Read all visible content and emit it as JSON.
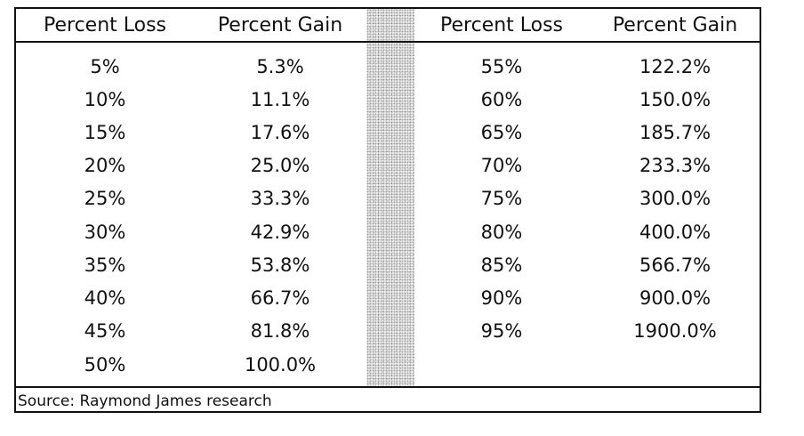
{
  "table": {
    "headers": {
      "left_loss": "Percent Loss",
      "left_gain": "Percent Gain",
      "right_loss": "Percent Loss",
      "right_gain": "Percent Gain"
    },
    "left_rows": [
      {
        "loss": "5%",
        "gain": "5.3%"
      },
      {
        "loss": "10%",
        "gain": "11.1%"
      },
      {
        "loss": "15%",
        "gain": "17.6%"
      },
      {
        "loss": "20%",
        "gain": "25.0%"
      },
      {
        "loss": "25%",
        "gain": "33.3%"
      },
      {
        "loss": "30%",
        "gain": "42.9%"
      },
      {
        "loss": "35%",
        "gain": "53.8%"
      },
      {
        "loss": "40%",
        "gain": "66.7%"
      },
      {
        "loss": "45%",
        "gain": "81.8%"
      },
      {
        "loss": "50%",
        "gain": "100.0%"
      }
    ],
    "right_rows": [
      {
        "loss": "55%",
        "gain": "122.2%"
      },
      {
        "loss": "60%",
        "gain": "150.0%"
      },
      {
        "loss": "65%",
        "gain": "185.7%"
      },
      {
        "loss": "70%",
        "gain": "233.3%"
      },
      {
        "loss": "75%",
        "gain": "300.0%"
      },
      {
        "loss": "80%",
        "gain": "400.0%"
      },
      {
        "loss": "85%",
        "gain": "566.7%"
      },
      {
        "loss": "90%",
        "gain": "900.0%"
      },
      {
        "loss": "95%",
        "gain": "1900.0%"
      }
    ],
    "source": "Source: Raymond James research"
  }
}
